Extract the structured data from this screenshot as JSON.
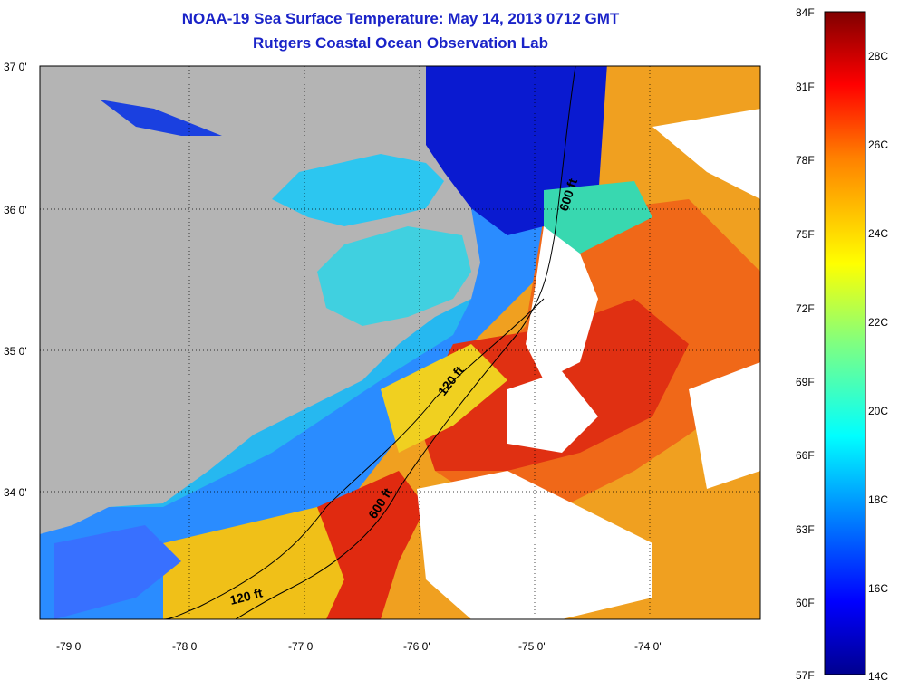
{
  "title_line1": "NOAA-19 Sea Surface Temperature:  May 14, 2013 0712 GMT",
  "title_line2": "Rutgers Coastal Ocean Observation Lab",
  "map": {
    "lat_labels": [
      "37 0'",
      "36 0'",
      "35 0'",
      "34 0'"
    ],
    "lon_labels": [
      "-79 0'",
      "-78 0'",
      "-77 0'",
      "-76 0'",
      "-75 0'",
      "-74 0'"
    ],
    "isobaths": [
      {
        "label": "600 ft"
      },
      {
        "label": "120 ft"
      },
      {
        "label": "600 ft"
      },
      {
        "label": "120 ft"
      }
    ],
    "colors": {
      "land": "#b4b4b4",
      "cloud": "#ffffff"
    }
  },
  "colorbar": {
    "fahrenheit_labels": [
      "84F",
      "81F",
      "78F",
      "75F",
      "72F",
      "69F",
      "66F",
      "63F",
      "60F",
      "57F"
    ],
    "celsius_labels": [
      "28C",
      "26C",
      "24C",
      "22C",
      "20C",
      "18C",
      "16C",
      "14C"
    ],
    "colors": [
      "#00008f",
      "#0000ff",
      "#0080ff",
      "#00ffff",
      "#80ff80",
      "#ffff00",
      "#ff8000",
      "#ff0000",
      "#800000"
    ]
  }
}
